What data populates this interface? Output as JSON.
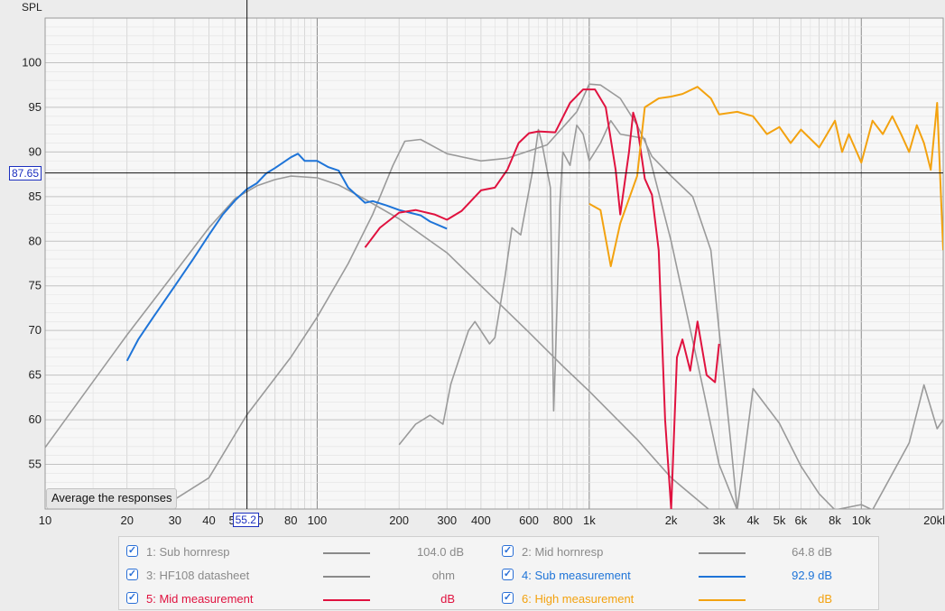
{
  "chart_data": {
    "type": "line",
    "ylabel": "SPL",
    "x_scale": "log",
    "xlim": [
      10,
      20000
    ],
    "ylim": [
      50,
      105
    ],
    "grid": true,
    "x_ticks": [
      "10",
      "20",
      "30",
      "40",
      "50",
      "60",
      "80",
      "100",
      "200",
      "300",
      "400",
      "600",
      "800",
      "1k",
      "2k",
      "3k",
      "4k",
      "5k",
      "6k",
      "8k",
      "10k",
      "20kl"
    ],
    "y_ticks": [
      "55",
      "60",
      "65",
      "70",
      "75",
      "80",
      "85",
      "90",
      "95",
      "100"
    ],
    "cursor": {
      "x_label": "55.2",
      "y_label": "87.65",
      "x": 55.2,
      "y": 87.65
    },
    "series": [
      {
        "name": "1: Sub hornresp",
        "legend_value": "104.0 dB",
        "color": "#9a9a9a",
        "points": [
          [
            10,
            56.9
          ],
          [
            20,
            69.5
          ],
          [
            30,
            76.5
          ],
          [
            40,
            81.5
          ],
          [
            50,
            84.8
          ],
          [
            60,
            86.2
          ],
          [
            70,
            86.9
          ],
          [
            80,
            87.3
          ],
          [
            100,
            87.1
          ],
          [
            120,
            86.3
          ],
          [
            150,
            84.7
          ],
          [
            200,
            82.5
          ],
          [
            300,
            78.7
          ],
          [
            400,
            75.0
          ],
          [
            600,
            69.8
          ],
          [
            800,
            66.0
          ],
          [
            1000,
            63.2
          ],
          [
            1500,
            57.8
          ],
          [
            2000,
            53.5
          ],
          [
            3000,
            49.0
          ]
        ]
      },
      {
        "name": "2: Mid hornresp",
        "legend_value": "64.8 dB",
        "color": "#9a9a9a",
        "points": [
          [
            26,
            49.9
          ],
          [
            40,
            53.5
          ],
          [
            55,
            60.5
          ],
          [
            80,
            67.0
          ],
          [
            100,
            71.5
          ],
          [
            130,
            77.5
          ],
          [
            160,
            83.0
          ],
          [
            190,
            88.5
          ],
          [
            210,
            91.2
          ],
          [
            240,
            91.4
          ],
          [
            300,
            89.8
          ],
          [
            400,
            89.0
          ],
          [
            500,
            89.3
          ],
          [
            700,
            90.8
          ],
          [
            900,
            94.5
          ],
          [
            1000,
            97.6
          ],
          [
            1100,
            97.5
          ],
          [
            1300,
            96.0
          ],
          [
            1500,
            93.0
          ],
          [
            1700,
            89.5
          ],
          [
            2000,
            87.3
          ],
          [
            2400,
            85.0
          ],
          [
            2800,
            79.0
          ],
          [
            3000,
            70.0
          ],
          [
            3300,
            58.0
          ],
          [
            3500,
            49.9
          ]
        ]
      },
      {
        "name": "3: HF108 datasheet",
        "legend_value": "ohm",
        "color": "#9a9a9a",
        "points": [
          [
            200,
            57.2
          ],
          [
            230,
            59.5
          ],
          [
            260,
            60.5
          ],
          [
            290,
            59.5
          ],
          [
            310,
            64.0
          ],
          [
            360,
            70.0
          ],
          [
            380,
            71.0
          ],
          [
            430,
            68.5
          ],
          [
            450,
            69.2
          ],
          [
            490,
            76.0
          ],
          [
            520,
            81.5
          ],
          [
            560,
            80.7
          ],
          [
            620,
            88.0
          ],
          [
            650,
            92.5
          ],
          [
            670,
            91.0
          ],
          [
            720,
            86.0
          ],
          [
            740,
            61.0
          ],
          [
            750,
            66.0
          ],
          [
            780,
            84.0
          ],
          [
            800,
            90.0
          ],
          [
            850,
            88.5
          ],
          [
            900,
            93.0
          ],
          [
            950,
            92.0
          ],
          [
            1000,
            89.0
          ],
          [
            1100,
            91.0
          ],
          [
            1200,
            93.5
          ],
          [
            1300,
            92.0
          ],
          [
            1600,
            91.5
          ],
          [
            2000,
            80.0
          ],
          [
            2600,
            64.0
          ],
          [
            3000,
            55.0
          ],
          [
            3500,
            49.9
          ],
          [
            4000,
            63.5
          ],
          [
            5000,
            59.6
          ],
          [
            6000,
            54.8
          ],
          [
            7000,
            51.7
          ],
          [
            8000,
            49.9
          ],
          [
            10000,
            50.5
          ],
          [
            11000,
            49.9
          ],
          [
            15000,
            57.4
          ],
          [
            17000,
            63.9
          ],
          [
            19000,
            59.0
          ],
          [
            20000,
            60.0
          ]
        ]
      },
      {
        "name": "4: Sub measurement",
        "legend_value": "92.9 dB",
        "color": "#1e74d8",
        "points": [
          [
            20,
            66.6
          ],
          [
            22,
            69.0
          ],
          [
            25,
            71.5
          ],
          [
            30,
            75.0
          ],
          [
            35,
            78.0
          ],
          [
            40,
            80.7
          ],
          [
            45,
            83.0
          ],
          [
            50,
            84.6
          ],
          [
            55,
            85.8
          ],
          [
            60,
            86.5
          ],
          [
            65,
            87.6
          ],
          [
            70,
            88.2
          ],
          [
            80,
            89.4
          ],
          [
            85,
            89.8
          ],
          [
            90,
            89.0
          ],
          [
            100,
            89.0
          ],
          [
            110,
            88.3
          ],
          [
            120,
            87.9
          ],
          [
            130,
            86.0
          ],
          [
            150,
            84.3
          ],
          [
            160,
            84.5
          ],
          [
            180,
            84.0
          ],
          [
            200,
            83.5
          ],
          [
            240,
            82.9
          ],
          [
            260,
            82.2
          ],
          [
            300,
            81.4
          ]
        ]
      },
      {
        "name": "5: Mid measurement",
        "legend_value": "dB",
        "color": "#e0123f",
        "points": [
          [
            150,
            79.3
          ],
          [
            170,
            81.5
          ],
          [
            200,
            83.2
          ],
          [
            230,
            83.5
          ],
          [
            270,
            83.0
          ],
          [
            300,
            82.4
          ],
          [
            340,
            83.4
          ],
          [
            400,
            85.7
          ],
          [
            450,
            86.0
          ],
          [
            500,
            88.0
          ],
          [
            550,
            91.0
          ],
          [
            600,
            92.1
          ],
          [
            650,
            92.3
          ],
          [
            750,
            92.2
          ],
          [
            850,
            95.5
          ],
          [
            950,
            97.0
          ],
          [
            1050,
            97.0
          ],
          [
            1150,
            95.0
          ],
          [
            1250,
            88.0
          ],
          [
            1300,
            83.0
          ],
          [
            1400,
            90.0
          ],
          [
            1450,
            94.4
          ],
          [
            1500,
            93.0
          ],
          [
            1600,
            87.0
          ],
          [
            1700,
            85.2
          ],
          [
            1800,
            79.0
          ],
          [
            1900,
            60.0
          ],
          [
            2000,
            50.0
          ],
          [
            2100,
            67.0
          ],
          [
            2200,
            69.0
          ],
          [
            2350,
            65.5
          ],
          [
            2500,
            71.0
          ],
          [
            2700,
            65.0
          ],
          [
            2900,
            64.2
          ],
          [
            3000,
            68.5
          ]
        ]
      },
      {
        "name": "6: High measurement",
        "legend_value": "dB",
        "color": "#f3a20f",
        "points": [
          [
            1000,
            84.2
          ],
          [
            1100,
            83.5
          ],
          [
            1200,
            77.2
          ],
          [
            1300,
            82.0
          ],
          [
            1500,
            87.3
          ],
          [
            1600,
            95.0
          ],
          [
            1800,
            96.0
          ],
          [
            2000,
            96.2
          ],
          [
            2200,
            96.5
          ],
          [
            2500,
            97.3
          ],
          [
            2800,
            96.0
          ],
          [
            3000,
            94.2
          ],
          [
            3500,
            94.5
          ],
          [
            4000,
            94.0
          ],
          [
            4500,
            92.0
          ],
          [
            5000,
            92.8
          ],
          [
            5500,
            91.0
          ],
          [
            6000,
            92.5
          ],
          [
            7000,
            90.5
          ],
          [
            8000,
            93.5
          ],
          [
            8500,
            90.0
          ],
          [
            9000,
            92.0
          ],
          [
            10000,
            88.8
          ],
          [
            11000,
            93.5
          ],
          [
            12000,
            92.0
          ],
          [
            13000,
            94.0
          ],
          [
            14000,
            92.0
          ],
          [
            15000,
            90.0
          ],
          [
            16000,
            93.0
          ],
          [
            17000,
            91.0
          ],
          [
            18000,
            88.0
          ],
          [
            19000,
            95.5
          ],
          [
            20000,
            79.0
          ]
        ]
      }
    ]
  },
  "controls": {
    "average_button": "Average the responses"
  }
}
